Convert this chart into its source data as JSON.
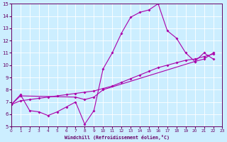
{
  "xlabel": "Windchill (Refroidissement éolien,°C)",
  "bg_color": "#cceeff",
  "grid_color": "#ffffff",
  "line_color": "#aa00aa",
  "ylim": [
    5,
    15
  ],
  "xlim": [
    0,
    23
  ],
  "yticks": [
    5,
    6,
    7,
    8,
    9,
    10,
    11,
    12,
    13,
    14,
    15
  ],
  "xticks": [
    0,
    1,
    2,
    3,
    4,
    5,
    6,
    7,
    8,
    9,
    10,
    11,
    12,
    13,
    14,
    15,
    16,
    17,
    18,
    19,
    20,
    21,
    22,
    23
  ],
  "series1_x": [
    0,
    1,
    2,
    3,
    4,
    5,
    6,
    7,
    8,
    9,
    10,
    11,
    12,
    13,
    14,
    15,
    16,
    17,
    18,
    19,
    20,
    21,
    22
  ],
  "series1_y": [
    6.8,
    7.6,
    6.3,
    6.2,
    5.9,
    6.2,
    6.6,
    7.0,
    5.2,
    6.3,
    9.7,
    11.0,
    12.6,
    13.9,
    14.3,
    14.5,
    15.0,
    12.8,
    12.2,
    11.0,
    10.3,
    11.0,
    10.5
  ],
  "series2_x": [
    0,
    1,
    2,
    3,
    4,
    5,
    6,
    7,
    8,
    9,
    10,
    11,
    12,
    13,
    14,
    15,
    16,
    17,
    18,
    19,
    20,
    21,
    22
  ],
  "series2_y": [
    6.8,
    7.1,
    7.2,
    7.3,
    7.4,
    7.5,
    7.6,
    7.7,
    7.8,
    7.9,
    8.1,
    8.3,
    8.6,
    8.9,
    9.2,
    9.5,
    9.8,
    10.0,
    10.2,
    10.4,
    10.5,
    10.7,
    10.9
  ],
  "series3_x": [
    0,
    1,
    7,
    8,
    9,
    10,
    20,
    21,
    22
  ],
  "series3_y": [
    6.8,
    7.5,
    7.4,
    7.2,
    7.4,
    8.0,
    10.3,
    10.5,
    11.0
  ]
}
